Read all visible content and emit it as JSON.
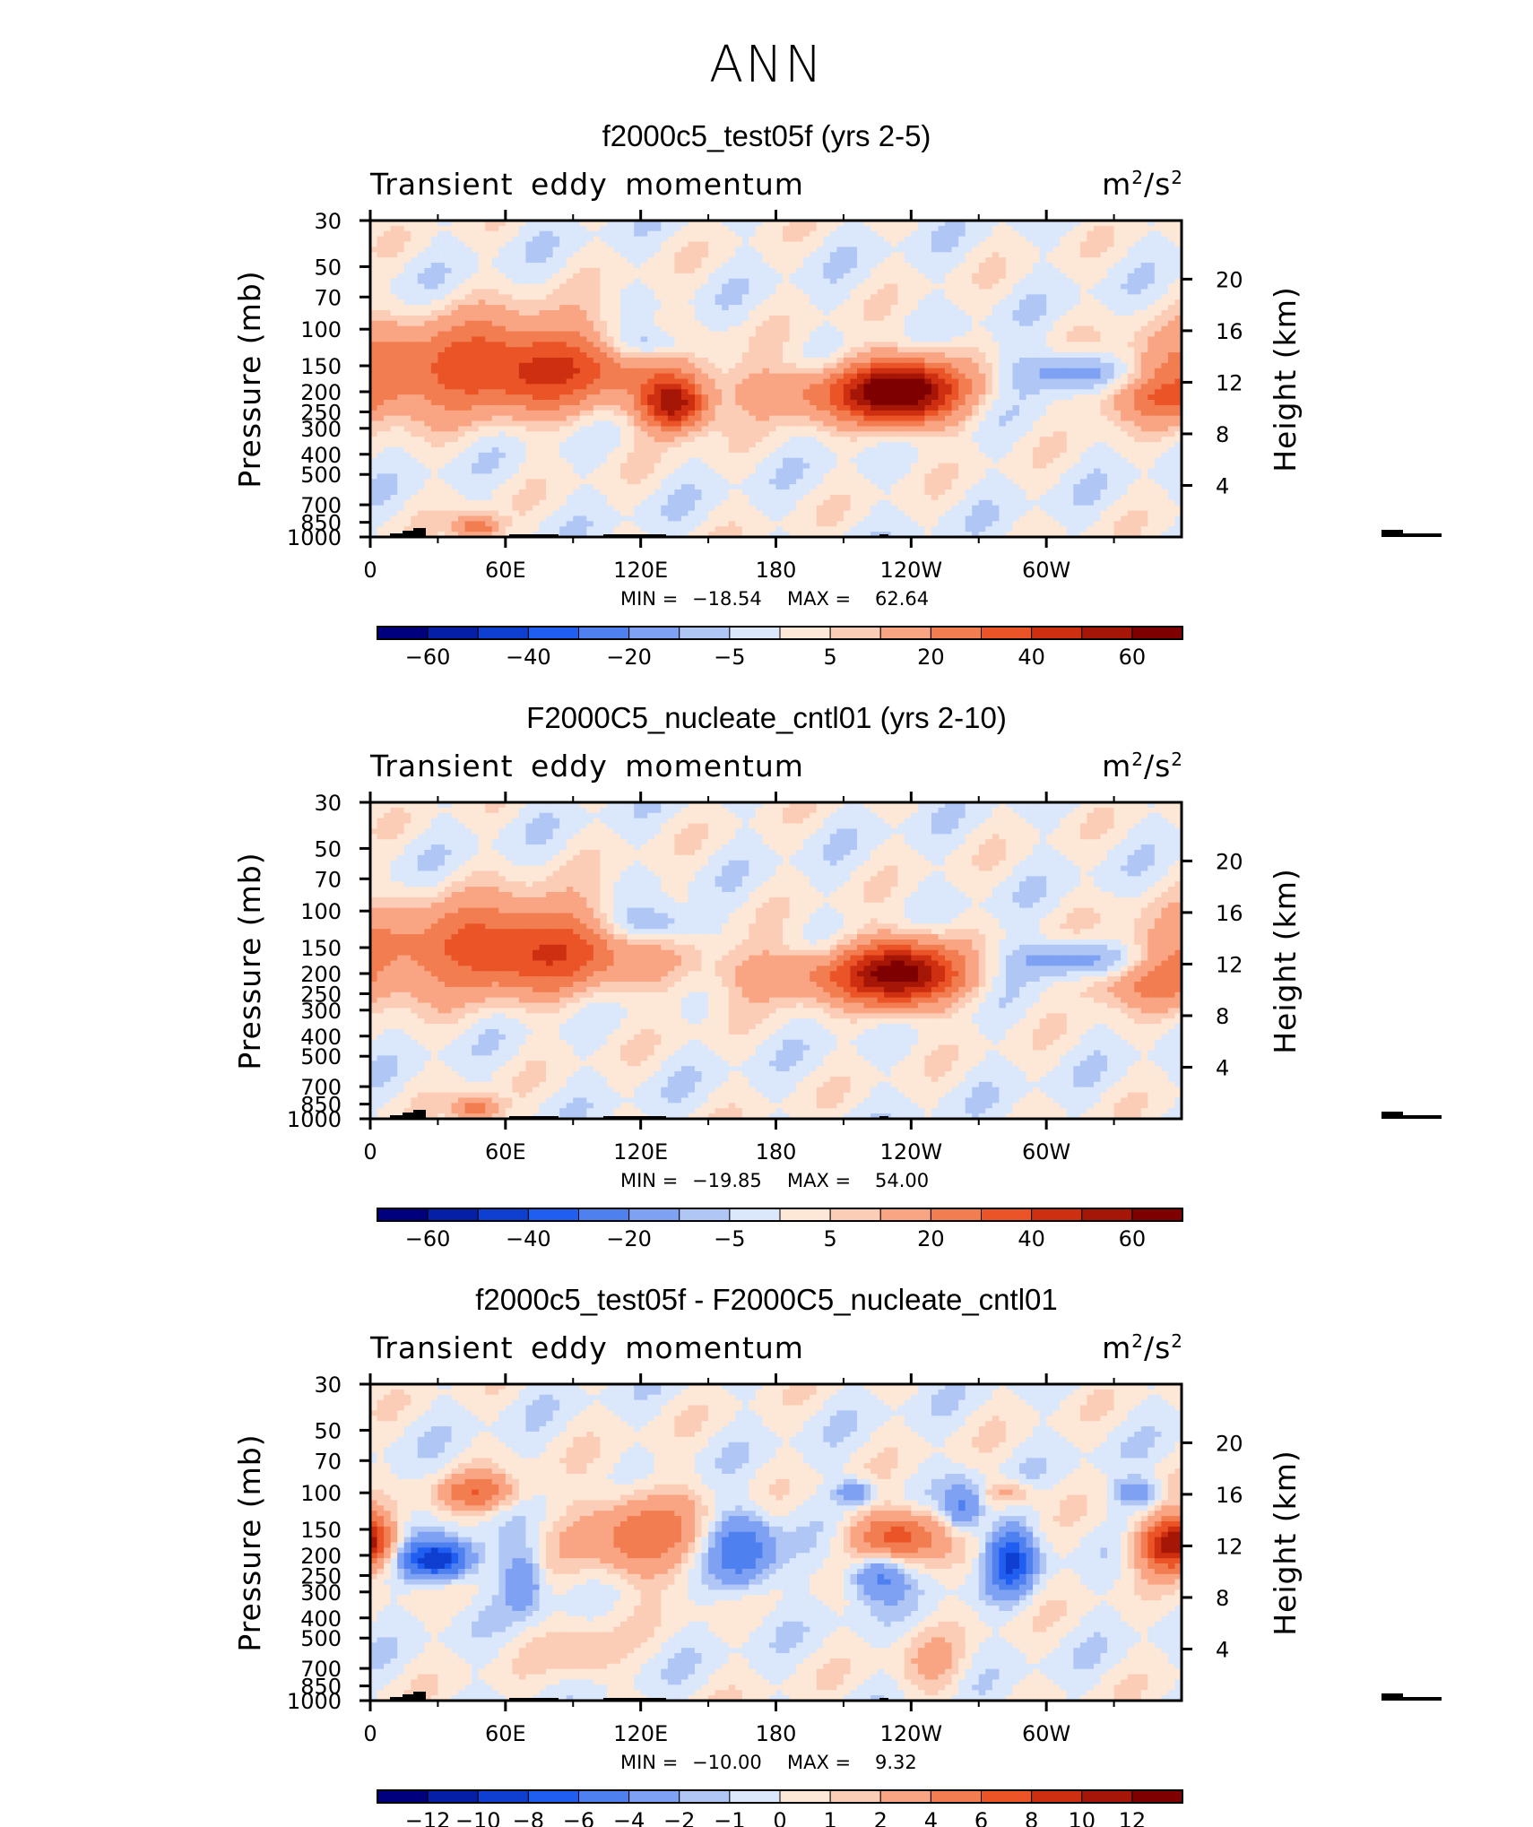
{
  "suptitle": "ANN",
  "colors": {
    "abs": [
      "#00007f",
      "#0520a6",
      "#0f3fd1",
      "#1f5ef0",
      "#4f80f0",
      "#7ea1f3",
      "#b0c7f6",
      "#dbe7fb",
      "#fde8d8",
      "#fccdb6",
      "#f9a583",
      "#f27d51",
      "#ea5426",
      "#cd2f10",
      "#a61607",
      "#7f0000"
    ],
    "diff": [
      "#00007f",
      "#0520a6",
      "#0f3fd1",
      "#1f5ef0",
      "#4f80f0",
      "#7ea1f3",
      "#b0c7f6",
      "#dbe7fb",
      "#fde8d8",
      "#fccdb6",
      "#f9a583",
      "#f27d51",
      "#ea5426",
      "#cd2f10",
      "#a61607",
      "#7f0000"
    ]
  },
  "chart_data": [
    {
      "type": "heatmap",
      "title": "f2000c5_test05f (yrs 2-5)",
      "variable": "Transient eddy momentum",
      "units_base": "m",
      "units_mid": "/s",
      "units_exp": "2",
      "ylabel": "Pressure (mb)",
      "ylabel2": "Height (km)",
      "x_ticks": [
        "0",
        "60E",
        "120E",
        "180",
        "120W",
        "60W"
      ],
      "y_ticks": [
        "30",
        "50",
        "70",
        "100",
        "150",
        "200",
        "250",
        "300",
        "400",
        "500",
        "700",
        "850",
        "1000"
      ],
      "y2_ticks": [
        "20",
        "16",
        "12",
        "8",
        "4"
      ],
      "min_label": "MIN =",
      "min": "−18.54",
      "max_label": "MAX =",
      "max": "62.64",
      "colorbar_labels": [
        "−60",
        "−40",
        "−20",
        "−5",
        "5",
        "20",
        "40",
        "60"
      ],
      "blobs": [
        {
          "lon": 68,
          "p": 150,
          "value": 45,
          "rx": 38,
          "rz": 0.34
        },
        {
          "lon": 135,
          "p": 230,
          "value": 55,
          "rx": 10,
          "rz": 0.2
        },
        {
          "lon": 237,
          "p": 200,
          "value": 62,
          "rx": 16,
          "rz": 0.26
        },
        {
          "lon": 205,
          "p": 200,
          "value": 25,
          "rx": 32,
          "rz": 0.2
        },
        {
          "lon": 123,
          "p": 120,
          "value": -18,
          "rx": 14,
          "rz": 0.14
        },
        {
          "lon": 312,
          "p": 160,
          "value": -17,
          "rx": 18,
          "rz": 0.16
        },
        {
          "lon": 0,
          "p": 170,
          "value": 18,
          "rx": 22,
          "rz": 0.3
        },
        {
          "lon": 345,
          "p": 220,
          "value": 15,
          "rx": 18,
          "rz": 0.16
        },
        {
          "lon": 47,
          "p": 900,
          "value": 30,
          "rx": 7,
          "rz": 0.1
        }
      ]
    },
    {
      "type": "heatmap",
      "title": "F2000C5_nucleate_cntl01 (yrs 2-10)",
      "variable": "Transient eddy momentum",
      "units_base": "m",
      "units_mid": "/s",
      "units_exp": "2",
      "ylabel": "Pressure (mb)",
      "ylabel2": "Height (km)",
      "x_ticks": [
        "0",
        "60E",
        "120E",
        "180",
        "120W",
        "60W"
      ],
      "y_ticks": [
        "30",
        "50",
        "70",
        "100",
        "150",
        "200",
        "250",
        "300",
        "400",
        "500",
        "700",
        "850",
        "1000"
      ],
      "y2_ticks": [
        "20",
        "16",
        "12",
        "8",
        "4"
      ],
      "min_label": "MIN =",
      "min": "−19.85",
      "max_label": "MAX =",
      "max": "54.00",
      "colorbar_labels": [
        "−60",
        "−40",
        "−20",
        "−5",
        "5",
        "20",
        "40",
        "60"
      ],
      "blobs": [
        {
          "lon": 68,
          "p": 150,
          "value": 42,
          "rx": 36,
          "rz": 0.34
        },
        {
          "lon": 237,
          "p": 200,
          "value": 54,
          "rx": 16,
          "rz": 0.27
        },
        {
          "lon": 200,
          "p": 200,
          "value": 22,
          "rx": 35,
          "rz": 0.2
        },
        {
          "lon": 125,
          "p": 120,
          "value": -19,
          "rx": 15,
          "rz": 0.16
        },
        {
          "lon": 310,
          "p": 170,
          "value": -15,
          "rx": 20,
          "rz": 0.16
        },
        {
          "lon": 0,
          "p": 170,
          "value": 15,
          "rx": 22,
          "rz": 0.3
        },
        {
          "lon": 340,
          "p": 230,
          "value": 14,
          "rx": 20,
          "rz": 0.15
        },
        {
          "lon": 47,
          "p": 900,
          "value": 28,
          "rx": 7,
          "rz": 0.1
        }
      ]
    },
    {
      "type": "heatmap",
      "title": "f2000c5_test05f - F2000C5_nucleate_cntl01",
      "variable": "Transient eddy momentum",
      "units_base": "m",
      "units_mid": "/s",
      "units_exp": "2",
      "ylabel": "Pressure (mb)",
      "ylabel2": "Height (km)",
      "x_ticks": [
        "0",
        "60E",
        "120E",
        "180",
        "120W",
        "60W"
      ],
      "y_ticks": [
        "30",
        "50",
        "70",
        "100",
        "150",
        "200",
        "250",
        "300",
        "400",
        "500",
        "700",
        "850",
        "1000"
      ],
      "y2_ticks": [
        "20",
        "16",
        "12",
        "8",
        "4"
      ],
      "min_label": "MIN =",
      "min": "−10.00",
      "max_label": "MAX =",
      "max": "9.32",
      "colorbar_labels": [
        "−12",
        "−10",
        "−8",
        "−6",
        "−4",
        "−2",
        "−1",
        "0",
        "1",
        "2",
        "4",
        "6",
        "8",
        "10",
        "12"
      ],
      "blobs": [
        {
          "lon": 0,
          "p": 170,
          "value": 8,
          "rx": 8,
          "rz": 0.2
        },
        {
          "lon": 30,
          "p": 210,
          "value": -10,
          "rx": 10,
          "rz": 0.15
        },
        {
          "lon": 48,
          "p": 100,
          "value": 5,
          "rx": 12,
          "rz": 0.14
        },
        {
          "lon": 68,
          "p": 260,
          "value": -4,
          "rx": 6,
          "rz": 0.25
        },
        {
          "lon": 120,
          "p": 160,
          "value": 5,
          "rx": 20,
          "rz": 0.35
        },
        {
          "lon": 165,
          "p": 190,
          "value": -6,
          "rx": 10,
          "rz": 0.3
        },
        {
          "lon": 215,
          "p": 100,
          "value": -4,
          "rx": 6,
          "rz": 0.1
        },
        {
          "lon": 235,
          "p": 160,
          "value": 7,
          "rx": 14,
          "rz": 0.2
        },
        {
          "lon": 225,
          "p": 250,
          "value": -5,
          "rx": 9,
          "rz": 0.18
        },
        {
          "lon": 263,
          "p": 120,
          "value": -5,
          "rx": 6,
          "rz": 0.2
        },
        {
          "lon": 283,
          "p": 100,
          "value": 3,
          "rx": 8,
          "rz": 0.1
        },
        {
          "lon": 284,
          "p": 210,
          "value": -8,
          "rx": 7,
          "rz": 0.25
        },
        {
          "lon": 350,
          "p": 180,
          "value": 6,
          "rx": 9,
          "rz": 0.2
        },
        {
          "lon": 340,
          "p": 100,
          "value": -4,
          "rx": 7,
          "rz": 0.1
        },
        {
          "lon": 95,
          "p": 600,
          "value": 2,
          "rx": 10,
          "rz": 0.25
        },
        {
          "lon": 250,
          "p": 700,
          "value": 2,
          "rx": 10,
          "rz": 0.25
        }
      ]
    }
  ]
}
